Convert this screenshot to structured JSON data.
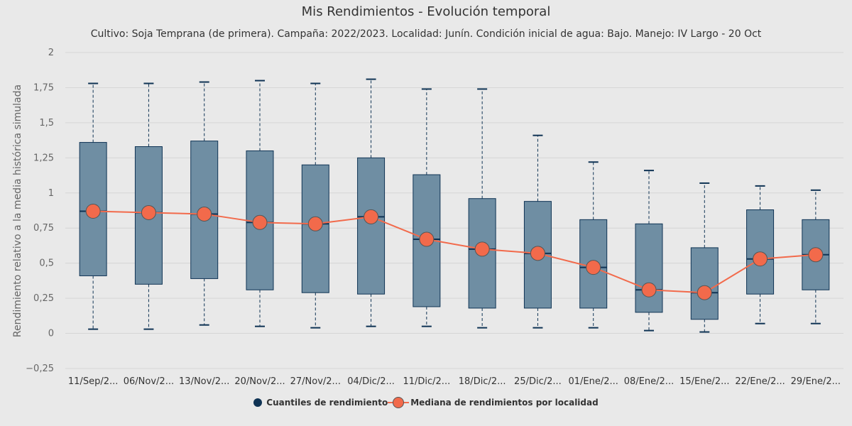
{
  "title": "Mis Rendimientos - Evolución temporal",
  "subtitle": "Cultivo: Soja Temprana (de primera). Campaña: 2022/2023. Localidad: Junín. Condición inicial de agua: Bajo. Manejo: IV Largo - 20 Oct",
  "colors": {
    "background": "#e9e9e9",
    "box_fill": "#6f8ea3",
    "box_stroke": "#0f3354",
    "median_line": "#f26a4b",
    "median_marker": "#f26a4b",
    "gridline": "#d6d6d6"
  },
  "legend": {
    "boxes_label": "Cuantiles de rendimiento",
    "median_label": "Mediana de rendimientos por localidad"
  },
  "chart_data": {
    "type": "boxplot",
    "ylabel": "Rendimiento relativo a la media histórica simulada",
    "xlabel": "",
    "ylim": [
      -0.25,
      2
    ],
    "yticks": [
      -0.25,
      0,
      0.25,
      0.5,
      0.75,
      1,
      1.25,
      1.5,
      1.75,
      2
    ],
    "ytick_labels": [
      "−0,25",
      "0",
      "0,25",
      "0,5",
      "0,75",
      "1",
      "1,25",
      "1,5",
      "1,75",
      "2"
    ],
    "grid": true,
    "legend_position": "bottom-center",
    "categories": [
      "11/Sep/2...",
      "06/Nov/2...",
      "13/Nov/2...",
      "20/Nov/2...",
      "27/Nov/2...",
      "04/Dic/2...",
      "11/Dic/2...",
      "18/Dic/2...",
      "25/Dic/2...",
      "01/Ene/2...",
      "08/Ene/2...",
      "15/Ene/2...",
      "22/Ene/2...",
      "29/Ene/2..."
    ],
    "series": [
      {
        "name": "Cuantiles de rendimiento",
        "type": "boxplot",
        "values": [
          {
            "low": 0.03,
            "q1": 0.41,
            "median": 0.87,
            "q3": 1.36,
            "high": 1.78
          },
          {
            "low": 0.03,
            "q1": 0.35,
            "median": 0.86,
            "q3": 1.33,
            "high": 1.78
          },
          {
            "low": 0.06,
            "q1": 0.39,
            "median": 0.85,
            "q3": 1.37,
            "high": 1.79
          },
          {
            "low": 0.05,
            "q1": 0.31,
            "median": 0.79,
            "q3": 1.3,
            "high": 1.8
          },
          {
            "low": 0.04,
            "q1": 0.29,
            "median": 0.78,
            "q3": 1.2,
            "high": 1.78
          },
          {
            "low": 0.05,
            "q1": 0.28,
            "median": 0.83,
            "q3": 1.25,
            "high": 1.81
          },
          {
            "low": 0.05,
            "q1": 0.19,
            "median": 0.67,
            "q3": 1.13,
            "high": 1.74
          },
          {
            "low": 0.04,
            "q1": 0.18,
            "median": 0.6,
            "q3": 0.96,
            "high": 1.74
          },
          {
            "low": 0.04,
            "q1": 0.18,
            "median": 0.57,
            "q3": 0.94,
            "high": 1.41
          },
          {
            "low": 0.04,
            "q1": 0.18,
            "median": 0.47,
            "q3": 0.81,
            "high": 1.22
          },
          {
            "low": 0.02,
            "q1": 0.15,
            "median": 0.31,
            "q3": 0.78,
            "high": 1.16
          },
          {
            "low": 0.01,
            "q1": 0.1,
            "median": 0.29,
            "q3": 0.61,
            "high": 1.07
          },
          {
            "low": 0.07,
            "q1": 0.28,
            "median": 0.53,
            "q3": 0.88,
            "high": 1.05
          },
          {
            "low": 0.07,
            "q1": 0.31,
            "median": 0.56,
            "q3": 0.81,
            "high": 1.02
          }
        ]
      },
      {
        "name": "Mediana de rendimientos por localidad",
        "type": "line",
        "values": [
          0.87,
          0.86,
          0.85,
          0.79,
          0.78,
          0.83,
          0.67,
          0.6,
          0.57,
          0.47,
          0.31,
          0.29,
          0.53,
          0.56
        ]
      }
    ]
  }
}
